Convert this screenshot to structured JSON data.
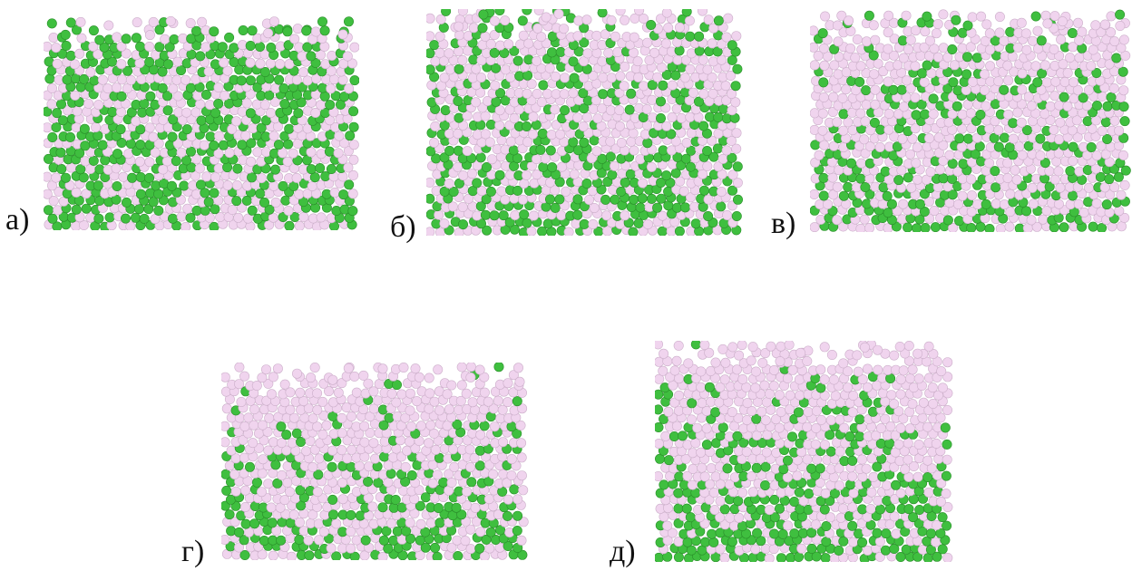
{
  "colors": {
    "green": "#3fbf3f",
    "green_edge": "#2a8f2a",
    "pink": "#f0d4ee",
    "pink_edge": "#cdb0cb"
  },
  "panels": [
    {
      "id": "a",
      "label": "а)",
      "green_bottom_fraction": 0.55,
      "green_top_fraction": 0.45
    },
    {
      "id": "b",
      "label": "б)",
      "green_bottom_fraction": 0.55,
      "green_top_fraction": 0.2
    },
    {
      "id": "v",
      "label": "в)",
      "green_bottom_fraction": 0.55,
      "green_top_fraction": 0.12
    },
    {
      "id": "g",
      "label": "г)",
      "green_bottom_fraction": 0.6,
      "green_top_fraction": 0.03
    },
    {
      "id": "d",
      "label": "д)",
      "green_bottom_fraction": 0.75,
      "green_top_fraction": 0.01
    }
  ]
}
